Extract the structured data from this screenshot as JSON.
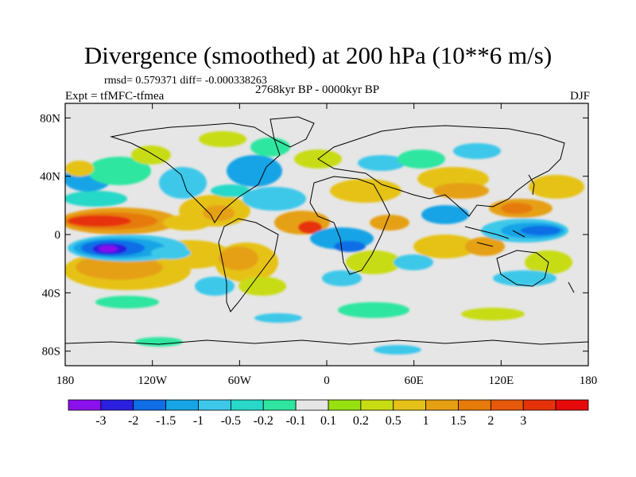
{
  "figure": {
    "title": "Divergence (smoothed) at 200 hPa (10**6 m/s)",
    "stats": "rmsd= 0.579371 diff= -0.000338263",
    "experiment": "Expt = tfMFC-tfmea",
    "period": "2768kyr BP - 0000kyr BP",
    "season": "DJF"
  },
  "map": {
    "lon_range": [
      -180,
      180
    ],
    "lat_range": [
      -90,
      90
    ],
    "background_color": "#e6e6e6",
    "lat_ticks": [
      {
        "value": 80,
        "label": "80N"
      },
      {
        "value": 40,
        "label": "40N"
      },
      {
        "value": 0,
        "label": "0"
      },
      {
        "value": -40,
        "label": "40S"
      },
      {
        "value": -80,
        "label": "80S"
      }
    ],
    "lon_ticks": [
      {
        "value": -180,
        "label": "180"
      },
      {
        "value": -120,
        "label": "120W"
      },
      {
        "value": -60,
        "label": "60W"
      },
      {
        "value": 0,
        "label": "0"
      },
      {
        "value": 60,
        "label": "60E"
      },
      {
        "value": 120,
        "label": "120E"
      },
      {
        "value": 180,
        "label": "180"
      }
    ]
  },
  "colorbar": {
    "colors": [
      "#8b10ee",
      "#2b1fe0",
      "#0f6ee6",
      "#17a4e6",
      "#3dc8ea",
      "#28d8c8",
      "#2fe6a0",
      "#e6e6e6",
      "#98e010",
      "#c8dc14",
      "#e6c218",
      "#e6a014",
      "#e67a0a",
      "#e6580a",
      "#e6320a",
      "#e60a0a"
    ],
    "labels": [
      "-3",
      "-2",
      "-1.5",
      "-1",
      "-0.5",
      "-0.2",
      "-0.1",
      "0.1",
      "0.2",
      "0.5",
      "1",
      "1.5",
      "2",
      "3"
    ]
  },
  "chart_data": {
    "type": "heatmap",
    "title": "Divergence (smoothed) at 200 hPa (10**6 m/s)",
    "variable": "divergence difference",
    "units": "10**6 m/s",
    "levels": [
      -3,
      -2,
      -1.5,
      -1,
      -0.5,
      -0.2,
      -0.1,
      0.1,
      0.2,
      0.5,
      1,
      1.5,
      2,
      3
    ],
    "xlim": [
      -180,
      180
    ],
    "ylim": [
      -90,
      90
    ],
    "features": [
      {
        "name": "central-pacific-convergence",
        "lon": -143,
        "lat": -8,
        "value": -3.1
      },
      {
        "name": "equatorial-pacific-divergence",
        "lon": -160,
        "lat": 7,
        "value": 2.2
      },
      {
        "name": "east-pacific-divergence",
        "lon": -100,
        "lat": 9,
        "value": 1.1
      },
      {
        "name": "south-pacific-divergence",
        "lon": -150,
        "lat": -25,
        "value": 1.0
      },
      {
        "name": "south-america-divergence",
        "lon": -62,
        "lat": -15,
        "value": 1.2
      },
      {
        "name": "atlantic-convergence",
        "lon": -40,
        "lat": 18,
        "value": -0.8
      },
      {
        "name": "equatorial-atlantic-divergence",
        "lon": -20,
        "lat": 2,
        "value": 1.8
      },
      {
        "name": "east-atlantic-divergence",
        "lon": -5,
        "lat": 5,
        "value": 2.1
      },
      {
        "name": "south-atlantic-convergence",
        "lon": -15,
        "lat": -12,
        "value": -1.0
      },
      {
        "name": "north-africa-divergence",
        "lon": 25,
        "lat": 22,
        "value": 0.8
      },
      {
        "name": "africa-convergence",
        "lon": 10,
        "lat": -5,
        "value": -0.7
      },
      {
        "name": "asia-divergence",
        "lon": 80,
        "lat": 25,
        "value": 0.9
      },
      {
        "name": "west-pacific-convergence",
        "lon": 145,
        "lat": 5,
        "value": -2.0
      },
      {
        "name": "west-pacific-divergence",
        "lon": 130,
        "lat": 18,
        "value": 1.3
      },
      {
        "name": "indonesia-divergence",
        "lon": 115,
        "lat": -5,
        "value": 1.5
      }
    ]
  }
}
